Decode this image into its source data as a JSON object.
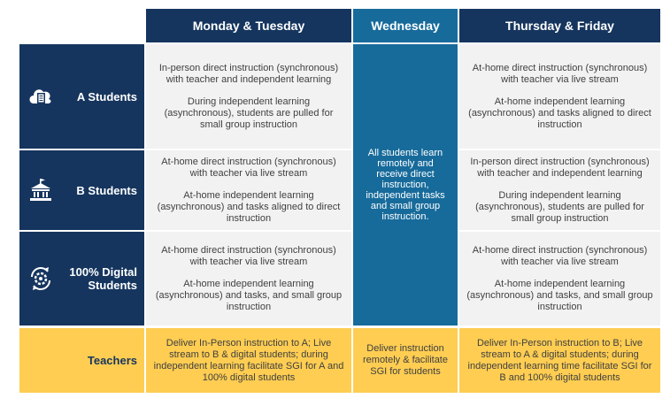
{
  "headers": {
    "mon_tue": "Monday & Tuesday",
    "wednesday": "Wednesday",
    "thu_fri": "Thursday & Friday"
  },
  "rows": [
    {
      "label": "A Students",
      "icon": "cloud-document-icon",
      "mon_tue": [
        "In-person direct instruction (synchronous) with teacher and independent learning",
        "During independent learning (asynchronous), students are pulled for small group instruction"
      ],
      "thu_fri": [
        "At-home direct instruction (synchronous) with teacher via live stream",
        "At-home independent learning (asynchronous) and tasks aligned to direct instruction"
      ]
    },
    {
      "label": "B Students",
      "icon": "school-building-icon",
      "mon_tue": [
        "At-home direct instruction (synchronous)  with teacher via live stream",
        "At-home independent learning (asynchronous) and tasks aligned to direct instruction"
      ],
      "thu_fri": [
        "In-person direct instruction (synchronous) with teacher and independent learning",
        "During independent learning (asynchronous), students are pulled for small group instruction"
      ]
    },
    {
      "label": "100% Digital Students",
      "icon": "gear-cycle-icon",
      "mon_tue": [
        "At-home direct instruction (synchronous) with teacher via live stream",
        "At-home independent learning (asynchronous) and tasks, and small group instruction"
      ],
      "thu_fri": [
        "At-home direct instruction (synchronous) with teacher via live stream",
        "At-home independent learning (asynchronous) and tasks, and small group instruction"
      ]
    }
  ],
  "wednesday_all": "All students learn remotely and receive direct instruction, independent tasks and small group instruction.",
  "teachers": {
    "label": "Teachers",
    "mon_tue": "Deliver In-Person instruction to A; Live stream to B & digital students; during independent learning facilitate SGI for A and 100% digital students",
    "wednesday": "Deliver instruction remotely & facilitate SGI for students",
    "thu_fri": "Deliver In-Person instruction to B; Live stream to A & digital students; during independent learning time facilitate SGI for B and 100% digital students"
  },
  "colors": {
    "navy": "#15355e",
    "wednesday_blue": "#176b9b",
    "cell_gray": "#f2f2f2",
    "teacher_yellow": "#fecd52"
  }
}
